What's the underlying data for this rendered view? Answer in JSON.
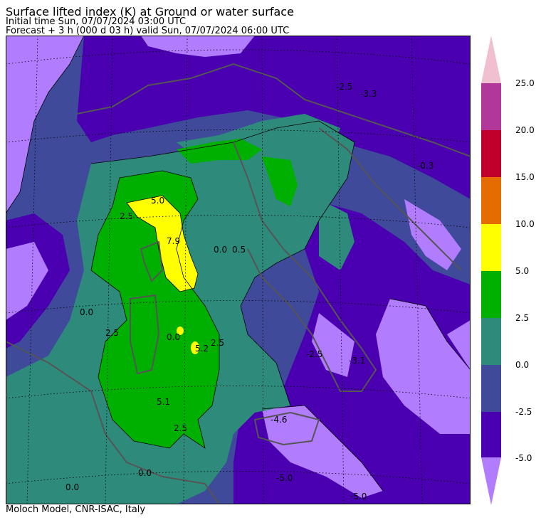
{
  "header": {
    "title": "Surface lifted index (K) at Ground or water surface",
    "initial": "Initial time  Sun, 07/07/2024  03:00 UTC",
    "forecast": "Forecast  +   3 h  (000 d 03 h)  valid Sun, 07/07/2024 06:00 UTC"
  },
  "footer": "Moloch Model, CNR-ISAC, Italy",
  "colorbar": {
    "levels": [
      {
        "value": "25.0",
        "color": "#b2379a"
      },
      {
        "value": "20.0",
        "color": "#c0002a"
      },
      {
        "value": "15.0",
        "color": "#e46c00"
      },
      {
        "value": "10.0",
        "color": "#ffff00"
      },
      {
        "value": "5.0",
        "color": "#00b000"
      },
      {
        "value": "2.5",
        "color": "#2e8b7b"
      },
      {
        "value": "0.0",
        "color": "#3f4a9b"
      },
      {
        "value": "-2.5",
        "color": "#4a00b0"
      },
      {
        "value": "-5.0",
        "color": "#b27cff"
      }
    ],
    "top_arrow_color": "#f0c0d0"
  },
  "contour_labels": [
    {
      "text": "-2.5"
    },
    {
      "text": "-3.3"
    },
    {
      "text": "-0.3"
    },
    {
      "text": "5.0"
    },
    {
      "text": "2.5"
    },
    {
      "text": "7.9"
    },
    {
      "text": "0.0"
    },
    {
      "text": "0.5"
    },
    {
      "text": "0.0"
    },
    {
      "text": "2.5"
    },
    {
      "text": "5.2"
    },
    {
      "text": "2.5"
    },
    {
      "text": "-2.5"
    },
    {
      "text": "-3.1"
    },
    {
      "text": "0.0"
    },
    {
      "text": "5.1"
    },
    {
      "text": "2.5"
    },
    {
      "text": "-4.6"
    },
    {
      "text": "0.0"
    },
    {
      "text": "0.0"
    },
    {
      "text": "-5.0"
    },
    {
      "text": "-5.0"
    }
  ]
}
